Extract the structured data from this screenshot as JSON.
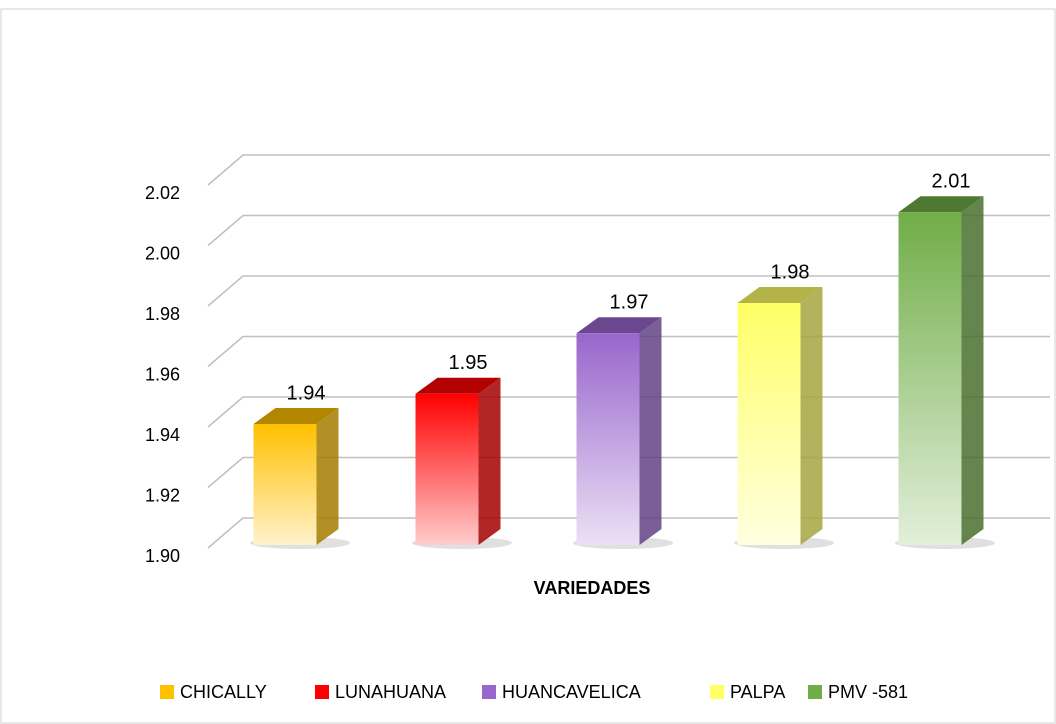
{
  "chart_data": {
    "type": "bar3d",
    "x_label": "VARIEDADES",
    "categories": [
      null
    ],
    "series": [
      {
        "name": "CHICALLY",
        "color": "#ffc000",
        "values": [
          1.94
        ]
      },
      {
        "name": "LUNAHUANA",
        "color": "#ff0000",
        "values": [
          1.95
        ]
      },
      {
        "name": "HUANCAVELICA",
        "color": "#9966cc",
        "values": [
          1.97
        ]
      },
      {
        "name": "PALPA",
        "color": "#ffff66",
        "values": [
          1.98
        ]
      },
      {
        "name": "PMV -581",
        "color": "#70ad47",
        "values": [
          2.01
        ]
      }
    ],
    "ylim": [
      1.9,
      2.02
    ],
    "yticks": [
      {
        "value": 1.9,
        "label": "1.90"
      },
      1.92,
      1.94,
      1.96,
      1.98,
      {
        "value": 2.0,
        "label": "2.00"
      },
      2.02
    ],
    "grid": true,
    "legend": "bottom"
  }
}
